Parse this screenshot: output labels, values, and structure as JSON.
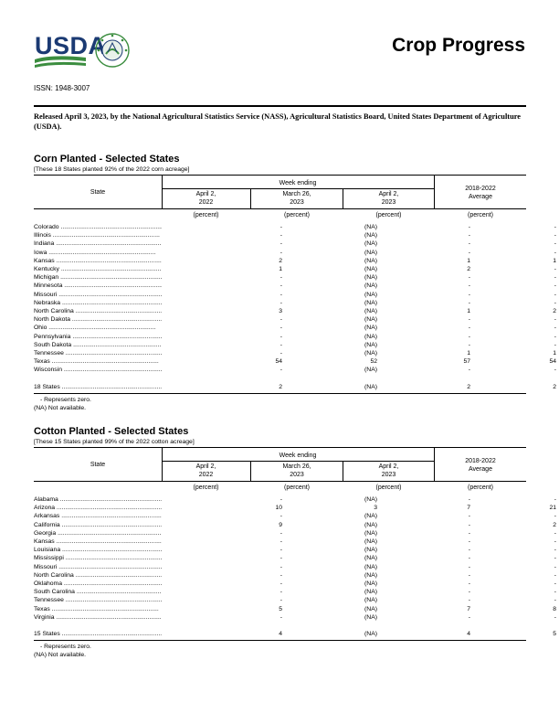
{
  "header": {
    "logo_text": "USDA",
    "seal_text": "AGRICULTURE COUNTS",
    "title": "Crop Progress",
    "issn": "ISSN: 1948-3007",
    "release": "Released April 3, 2023, by the National Agricultural Statistics Service (NASS), Agricultural Statistics Board, United States Department of Agriculture (USDA)."
  },
  "colors": {
    "usda_blue": "#1b3a73",
    "usda_green": "#3b8d3f"
  },
  "corn": {
    "title": "Corn Planted - Selected States",
    "note": "[These 18 States planted 92% of the 2022 corn acreage]",
    "col_state": "State",
    "col_week": "Week ending",
    "col_avg_1": "2018-2022",
    "col_avg_2": "Average",
    "col1_a": "April 2,",
    "col1_b": "2022",
    "col2_a": "March 26,",
    "col2_b": "2023",
    "col3_a": "April 2,",
    "col3_b": "2023",
    "unit": "(percent)",
    "rows": [
      {
        "state": "Colorado",
        "v": [
          "-",
          "(NA)",
          "-",
          "-"
        ]
      },
      {
        "state": "Illinois",
        "v": [
          "-",
          "(NA)",
          "-",
          "-"
        ]
      },
      {
        "state": "Indiana",
        "v": [
          "-",
          "(NA)",
          "-",
          "-"
        ]
      },
      {
        "state": "Iowa",
        "v": [
          "-",
          "(NA)",
          "-",
          "-"
        ]
      },
      {
        "state": "Kansas",
        "v": [
          "2",
          "(NA)",
          "1",
          "1"
        ]
      },
      {
        "state": "Kentucky",
        "v": [
          "1",
          "(NA)",
          "2",
          "-"
        ]
      },
      {
        "state": "Michigan",
        "v": [
          "-",
          "(NA)",
          "-",
          "-"
        ]
      },
      {
        "state": "Minnesota",
        "v": [
          "-",
          "(NA)",
          "-",
          "-"
        ]
      },
      {
        "state": "Missouri",
        "v": [
          "-",
          "(NA)",
          "-",
          "-"
        ]
      },
      {
        "state": "Nebraska",
        "v": [
          "-",
          "(NA)",
          "-",
          "-"
        ]
      },
      {
        "state": "North Carolina",
        "v": [
          "3",
          "(NA)",
          "1",
          "2"
        ]
      },
      {
        "state": "North Dakota",
        "v": [
          "-",
          "(NA)",
          "-",
          "-"
        ]
      },
      {
        "state": "Ohio",
        "v": [
          "-",
          "(NA)",
          "-",
          "-"
        ]
      },
      {
        "state": "Pennsylvania",
        "v": [
          "-",
          "(NA)",
          "-",
          "-"
        ]
      },
      {
        "state": "South Dakota",
        "v": [
          "-",
          "(NA)",
          "-",
          "-"
        ]
      },
      {
        "state": "Tennessee",
        "v": [
          "-",
          "(NA)",
          "1",
          "1"
        ]
      },
      {
        "state": "Texas",
        "v": [
          "54",
          "52",
          "57",
          "54"
        ]
      },
      {
        "state": "Wisconsin",
        "v": [
          "-",
          "(NA)",
          "-",
          "-"
        ]
      }
    ],
    "total": {
      "state": "18 States",
      "v": [
        "2",
        "(NA)",
        "2",
        "2"
      ]
    },
    "foot1": "- Represents zero.",
    "foot2": "(NA) Not available."
  },
  "cotton": {
    "title": "Cotton Planted - Selected States",
    "note": "[These 15 States planted 99% of the 2022 cotton acreage]",
    "col_state": "State",
    "col_week": "Week ending",
    "col_avg_1": "2018-2022",
    "col_avg_2": "Average",
    "col1_a": "April 2,",
    "col1_b": "2022",
    "col2_a": "March 26,",
    "col2_b": "2023",
    "col3_a": "April 2,",
    "col3_b": "2023",
    "unit": "(percent)",
    "rows": [
      {
        "state": "Alabama",
        "v": [
          "-",
          "(NA)",
          "-",
          "-"
        ]
      },
      {
        "state": "Arizona",
        "v": [
          "10",
          "3",
          "7",
          "21"
        ]
      },
      {
        "state": "Arkansas",
        "v": [
          "-",
          "(NA)",
          "-",
          "-"
        ]
      },
      {
        "state": "California",
        "v": [
          "9",
          "(NA)",
          "-",
          "2"
        ]
      },
      {
        "state": "Georgia",
        "v": [
          "-",
          "(NA)",
          "-",
          "-"
        ]
      },
      {
        "state": "Kansas",
        "v": [
          "-",
          "(NA)",
          "-",
          "-"
        ]
      },
      {
        "state": "Louisiana",
        "v": [
          "-",
          "(NA)",
          "-",
          "-"
        ]
      },
      {
        "state": "Mississippi",
        "v": [
          "-",
          "(NA)",
          "-",
          "-"
        ]
      },
      {
        "state": "Missouri",
        "v": [
          "-",
          "(NA)",
          "-",
          "-"
        ]
      },
      {
        "state": "North Carolina",
        "v": [
          "-",
          "(NA)",
          "-",
          "-"
        ]
      },
      {
        "state": "Oklahoma",
        "v": [
          "-",
          "(NA)",
          "-",
          "-"
        ]
      },
      {
        "state": "South Carolina",
        "v": [
          "-",
          "(NA)",
          "-",
          "-"
        ]
      },
      {
        "state": "Tennessee",
        "v": [
          "-",
          "(NA)",
          "-",
          "-"
        ]
      },
      {
        "state": "Texas",
        "v": [
          "5",
          "(NA)",
          "7",
          "8"
        ]
      },
      {
        "state": "Virginia",
        "v": [
          "-",
          "(NA)",
          "-",
          "-"
        ]
      }
    ],
    "total": {
      "state": "15 States",
      "v": [
        "4",
        "(NA)",
        "4",
        "5"
      ]
    },
    "foot1": "- Represents zero.",
    "foot2": "(NA) Not available."
  }
}
